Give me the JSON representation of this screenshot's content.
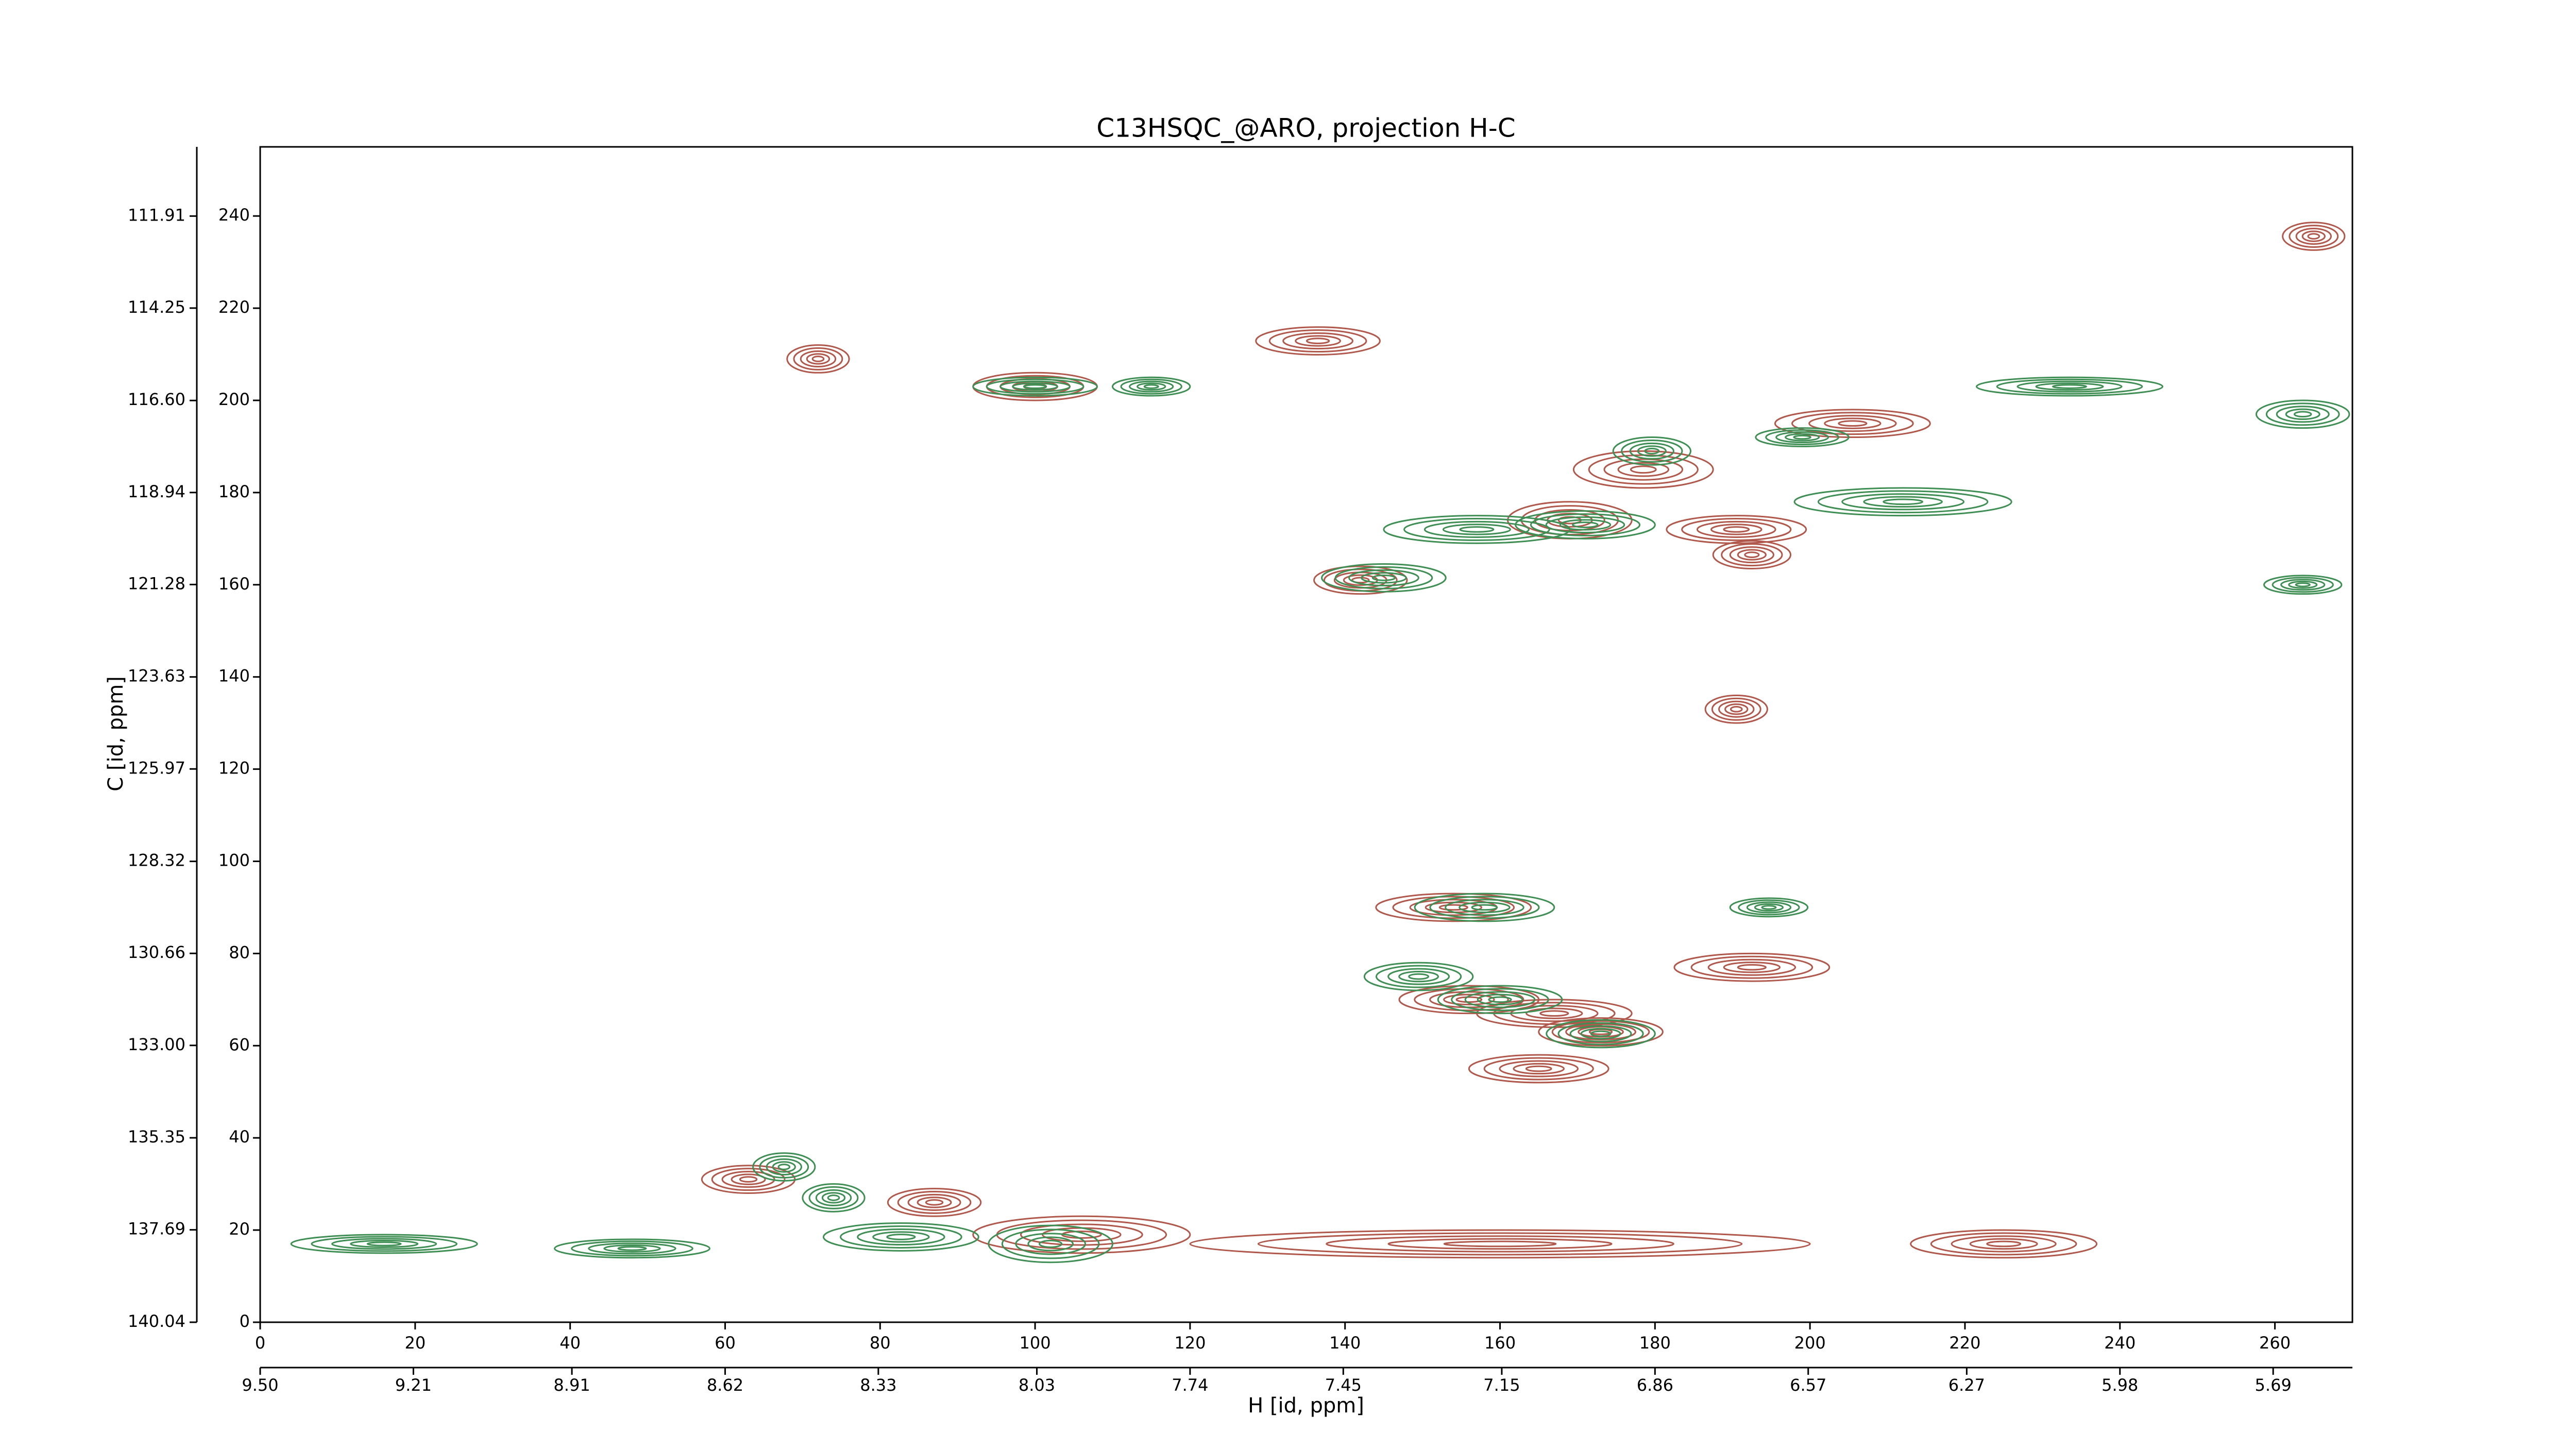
{
  "chart_data": {
    "type": "contour",
    "title": "C13HSQC_@ARO, projection H-C",
    "x_label": "H [id, ppm]",
    "y_label": "C [id, ppm]",
    "xlim": [
      0,
      270
    ],
    "ylim": [
      0,
      255
    ],
    "xticks": [
      0,
      20,
      40,
      60,
      80,
      100,
      120,
      140,
      160,
      180,
      200,
      220,
      240,
      260
    ],
    "yticks": [
      0,
      20,
      40,
      60,
      80,
      100,
      120,
      140,
      160,
      180,
      200,
      220,
      240
    ],
    "x2lim": [
      9.5,
      5.54
    ],
    "x2ticks": [
      {
        "value": 9.5,
        "label": "9.50"
      },
      9.21,
      8.91,
      8.62,
      8.33,
      8.03,
      7.74,
      7.45,
      7.15,
      6.86,
      6.57,
      6.27,
      5.98,
      5.69
    ],
    "y2lim": [
      140.04,
      110.15
    ],
    "y2ticks": [
      140.04,
      137.69,
      135.35,
      {
        "value": 133,
        "label": "133.00"
      },
      130.66,
      128.32,
      125.97,
      123.63,
      121.28,
      118.94,
      {
        "value": 116.6,
        "label": "116.60"
      },
      114.25,
      111.91
    ],
    "series": [
      {
        "color": "#b0584b",
        "x": [
          136.5,
          72,
          100,
          205.5,
          178.5,
          169,
          190.5,
          192.5,
          142,
          190.5,
          154,
          192.5,
          156,
          167,
          173,
          165,
          63,
          106,
          160,
          225,
          87,
          265
        ],
        "y": [
          212.9,
          209,
          203,
          195,
          185,
          174,
          172,
          166.5,
          161,
          133,
          90,
          77,
          70,
          67,
          63,
          55,
          31,
          19,
          17,
          17,
          26,
          235.6
        ],
        "w": [
          8,
          4,
          8,
          10,
          9,
          8,
          9,
          5,
          6,
          4,
          10,
          10,
          9,
          10,
          8,
          9,
          6,
          14,
          40,
          12,
          6,
          4
        ],
        "h": [
          3,
          3,
          3,
          3,
          4,
          4,
          3,
          3,
          3,
          3,
          3,
          3,
          3,
          3,
          3,
          3,
          3,
          4,
          3,
          3,
          3,
          3
        ]
      },
      {
        "color": "#3f8f55",
        "x": [
          100,
          115,
          233.5,
          263.6,
          199,
          157,
          171,
          212,
          145,
          263.6,
          179.6,
          158,
          194.7,
          149.5,
          160,
          173,
          67.6,
          74,
          82.7,
          102,
          16,
          48
        ],
        "y": [
          203,
          203,
          203,
          197,
          192,
          172,
          173,
          178,
          161.5,
          160,
          189,
          90,
          90,
          75,
          70,
          62.6,
          33.7,
          27,
          18.5,
          17,
          17,
          16
        ],
        "w": [
          8,
          5,
          12,
          6,
          6,
          12,
          9,
          14,
          8,
          5,
          5,
          9,
          5,
          7,
          8,
          7,
          4,
          4,
          10,
          8,
          12,
          10
        ],
        "h": [
          2,
          2,
          2,
          3,
          2,
          3,
          3,
          3,
          3,
          2,
          3,
          3,
          2,
          3,
          3,
          3,
          3,
          3,
          3,
          4,
          2,
          2
        ]
      }
    ]
  }
}
